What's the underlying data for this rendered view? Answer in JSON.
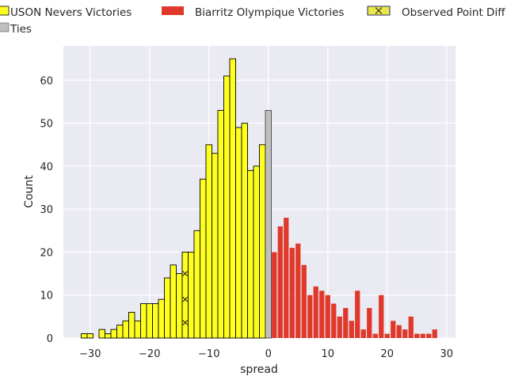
{
  "chart_data": {
    "type": "bar",
    "subtype": "histogram",
    "xlabel": "spread",
    "ylabel": "Count",
    "xlim": [
      -34.5,
      31.5
    ],
    "ylim": [
      0,
      68
    ],
    "x_ticks": [
      -30,
      -20,
      -10,
      0,
      10,
      20,
      30
    ],
    "y_ticks": [
      0,
      10,
      20,
      30,
      40,
      50,
      60
    ],
    "grid": true,
    "legend_placement": "top, above plot",
    "colors": {
      "background": "#eaeaf2",
      "grid": "#ffffff",
      "uson": "#ffff1f",
      "uson_edge": "#000000",
      "biarritz": "#e0392b",
      "ties": "#bfbfbf",
      "observed": "#e8e84a",
      "observed_edge": "#2b2b6b"
    },
    "series": [
      {
        "name": "USON Nevers Victories",
        "bins": [
          {
            "x": -31,
            "count": 1
          },
          {
            "x": -30,
            "count": 1
          },
          {
            "x": -28,
            "count": 2
          },
          {
            "x": -27,
            "count": 1
          },
          {
            "x": -26,
            "count": 2
          },
          {
            "x": -25,
            "count": 3
          },
          {
            "x": -24,
            "count": 4
          },
          {
            "x": -23,
            "count": 6
          },
          {
            "x": -22,
            "count": 4
          },
          {
            "x": -21,
            "count": 8
          },
          {
            "x": -20,
            "count": 8
          },
          {
            "x": -19,
            "count": 8
          },
          {
            "x": -18,
            "count": 9
          },
          {
            "x": -17,
            "count": 14
          },
          {
            "x": -16,
            "count": 17
          },
          {
            "x": -15,
            "count": 15
          },
          {
            "x": -14,
            "count": 20
          },
          {
            "x": -13,
            "count": 20
          },
          {
            "x": -12,
            "count": 25
          },
          {
            "x": -11,
            "count": 37
          },
          {
            "x": -10,
            "count": 45
          },
          {
            "x": -9,
            "count": 43
          },
          {
            "x": -8,
            "count": 53
          },
          {
            "x": -7,
            "count": 61
          },
          {
            "x": -6,
            "count": 65
          },
          {
            "x": -5,
            "count": 49
          },
          {
            "x": -4,
            "count": 50
          },
          {
            "x": -3,
            "count": 39
          },
          {
            "x": -2,
            "count": 40
          },
          {
            "x": -1,
            "count": 45
          }
        ]
      },
      {
        "name": "Ties",
        "bins": [
          {
            "x": 0,
            "count": 53
          }
        ]
      },
      {
        "name": "Biarritz Olympique Victories",
        "bins": [
          {
            "x": 1,
            "count": 20
          },
          {
            "x": 2,
            "count": 26
          },
          {
            "x": 3,
            "count": 28
          },
          {
            "x": 4,
            "count": 21
          },
          {
            "x": 5,
            "count": 22
          },
          {
            "x": 6,
            "count": 17
          },
          {
            "x": 7,
            "count": 10
          },
          {
            "x": 8,
            "count": 12
          },
          {
            "x": 9,
            "count": 11
          },
          {
            "x": 10,
            "count": 10
          },
          {
            "x": 11,
            "count": 8
          },
          {
            "x": 12,
            "count": 5
          },
          {
            "x": 13,
            "count": 7
          },
          {
            "x": 14,
            "count": 4
          },
          {
            "x": 15,
            "count": 11
          },
          {
            "x": 16,
            "count": 2
          },
          {
            "x": 17,
            "count": 7
          },
          {
            "x": 18,
            "count": 1
          },
          {
            "x": 19,
            "count": 10
          },
          {
            "x": 20,
            "count": 1
          },
          {
            "x": 21,
            "count": 4
          },
          {
            "x": 22,
            "count": 3
          },
          {
            "x": 23,
            "count": 2
          },
          {
            "x": 24,
            "count": 5
          },
          {
            "x": 25,
            "count": 1
          },
          {
            "x": 26,
            "count": 1
          },
          {
            "x": 27,
            "count": 1
          },
          {
            "x": 28,
            "count": 2
          }
        ]
      },
      {
        "name": "Observed Point Diff",
        "bins": [
          {
            "x": -14,
            "count": 20
          }
        ]
      }
    ],
    "legend": [
      {
        "label": "USON Nevers Victories",
        "series": "USON Nevers Victories"
      },
      {
        "label": "Biarritz Olympique Victories",
        "series": "Biarritz Olympique Victories"
      },
      {
        "label": "Observed Point Diff",
        "series": "Observed Point Diff"
      },
      {
        "label": "Ties",
        "series": "Ties"
      }
    ]
  }
}
